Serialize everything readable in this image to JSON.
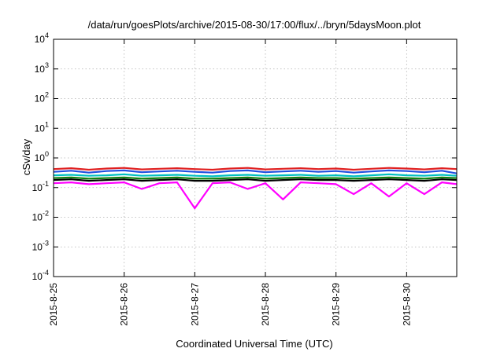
{
  "chart_data": {
    "type": "line",
    "title": "/data/run/goesPlots/archive/2015-08-30/17:00/flux/../bryn/5daysMoon.plot",
    "xlabel": "Coordinated Universal Time (UTC)",
    "ylabel": "cSv/day",
    "yscale": "log",
    "ylim": [
      0.0001,
      10000
    ],
    "xlim": [
      "2015-08-25",
      "2015-08-30 17:00"
    ],
    "x_ticks": [
      "2015-8-25",
      "2015-8-26",
      "2015-8-27",
      "2015-8-28",
      "2015-8-29",
      "2015-8-30"
    ],
    "y_ticks": [
      {
        "base": "10",
        "exp": "4",
        "value": 10000
      },
      {
        "base": "10",
        "exp": "3",
        "value": 1000
      },
      {
        "base": "10",
        "exp": "2",
        "value": 100
      },
      {
        "base": "10",
        "exp": "1",
        "value": 10
      },
      {
        "base": "10",
        "exp": "0",
        "value": 1
      },
      {
        "base": "10",
        "exp": "-1",
        "value": 0.1
      },
      {
        "base": "10",
        "exp": "-2",
        "value": 0.01
      },
      {
        "base": "10",
        "exp": "-3",
        "value": 0.001
      },
      {
        "base": "10",
        "exp": "-4",
        "value": 0.0001
      }
    ],
    "grid": true,
    "x_days": [
      0,
      0.25,
      0.5,
      0.75,
      1,
      1.25,
      1.5,
      1.75,
      2,
      2.25,
      2.5,
      2.75,
      3,
      3.25,
      3.5,
      3.75,
      4,
      4.25,
      4.5,
      4.75,
      5,
      5.25,
      5.5,
      5.71
    ],
    "series": [
      {
        "color": "#e02020",
        "values": [
          0.42,
          0.45,
          0.4,
          0.44,
          0.46,
          0.41,
          0.43,
          0.45,
          0.42,
          0.4,
          0.44,
          0.46,
          0.41,
          0.43,
          0.45,
          0.42,
          0.44,
          0.4,
          0.43,
          0.46,
          0.44,
          0.41,
          0.45,
          0.42
        ]
      },
      {
        "color": "#2050e0",
        "values": [
          0.34,
          0.37,
          0.32,
          0.36,
          0.38,
          0.33,
          0.35,
          0.37,
          0.34,
          0.32,
          0.36,
          0.38,
          0.33,
          0.35,
          0.37,
          0.34,
          0.36,
          0.32,
          0.35,
          0.38,
          0.36,
          0.33,
          0.37,
          0.3
        ]
      },
      {
        "color": "#00c0c0",
        "values": [
          0.26,
          0.27,
          0.25,
          0.26,
          0.28,
          0.25,
          0.26,
          0.27,
          0.25,
          0.24,
          0.26,
          0.27,
          0.25,
          0.26,
          0.27,
          0.25,
          0.26,
          0.24,
          0.26,
          0.28,
          0.26,
          0.25,
          0.27,
          0.25
        ]
      },
      {
        "color": "#108010",
        "values": [
          0.21,
          0.22,
          0.2,
          0.21,
          0.22,
          0.2,
          0.21,
          0.22,
          0.2,
          0.2,
          0.21,
          0.22,
          0.2,
          0.21,
          0.22,
          0.21,
          0.21,
          0.2,
          0.21,
          0.22,
          0.21,
          0.2,
          0.22,
          0.21
        ]
      },
      {
        "color": "#000000",
        "values": [
          0.18,
          0.19,
          0.17,
          0.18,
          0.19,
          0.17,
          0.18,
          0.19,
          0.17,
          0.17,
          0.18,
          0.19,
          0.17,
          0.18,
          0.19,
          0.18,
          0.18,
          0.17,
          0.18,
          0.19,
          0.18,
          0.17,
          0.19,
          0.18
        ]
      },
      {
        "color": "#ff00ff",
        "values": [
          0.14,
          0.15,
          0.13,
          0.14,
          0.15,
          0.09,
          0.14,
          0.15,
          0.02,
          0.14,
          0.15,
          0.09,
          0.14,
          0.04,
          0.15,
          0.14,
          0.13,
          0.06,
          0.14,
          0.05,
          0.14,
          0.06,
          0.15,
          0.13
        ]
      }
    ]
  }
}
